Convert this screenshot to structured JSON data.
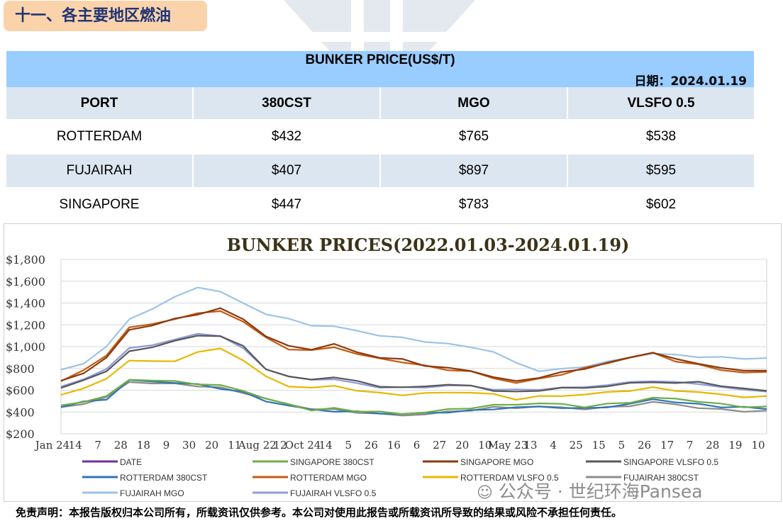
{
  "section_title": "十一、各主要地区燃油",
  "watermark": "pansea",
  "table": {
    "title": "BUNKER PRICE(US$/T)",
    "date_label": "日期：",
    "date_value": "2024.01.19",
    "columns": [
      "PORT",
      "380CST",
      "MGO",
      "VLSFO 0.5"
    ],
    "rows": [
      [
        "ROTTERDAM",
        "$432",
        "$765",
        "$538"
      ],
      [
        "FUJAIRAH",
        "$407",
        "$897",
        "$595"
      ],
      [
        "SINGAPORE",
        "$447",
        "$783",
        "$602"
      ]
    ]
  },
  "chart_data": {
    "type": "line",
    "title": "BUNKER PRICES(2022.01.03-2024.01.19)",
    "xlabel": "",
    "ylabel": "",
    "ylim": [
      200,
      1800
    ],
    "y_ticks": [
      "$200",
      "$400",
      "$600",
      "$800",
      "$1,000",
      "$1,200",
      "$1,400",
      "$1,600",
      "$1,800"
    ],
    "x_ticks": [
      "Jan 24",
      "14",
      "7",
      "28",
      "18",
      "9",
      "30",
      "20",
      "11",
      "Aug 22",
      "12",
      "Oct 24",
      "14",
      "5",
      "26",
      "16",
      "6",
      "27",
      "20",
      "10",
      "May 23",
      "13",
      "4",
      "25",
      "15",
      "5",
      "26",
      "17",
      "7",
      "28",
      "19",
      "10"
    ],
    "grid": true,
    "legend_position": "bottom",
    "series": [
      {
        "name": "DATE",
        "color": "#7030a0",
        "values": []
      },
      {
        "name": "SINGAPORE 380CST",
        "color": "#70ad47",
        "values": [
          455,
          500,
          540,
          700,
          690,
          680,
          660,
          640,
          600,
          520,
          470,
          420,
          430,
          410,
          400,
          380,
          400,
          420,
          440,
          460,
          470,
          480,
          470,
          450,
          470,
          490,
          530,
          520,
          500,
          470,
          450,
          447
        ]
      },
      {
        "name": "SINGAPORE MGO",
        "color": "#8b3a0e",
        "values": [
          680,
          760,
          900,
          1150,
          1200,
          1250,
          1300,
          1350,
          1250,
          1100,
          1000,
          980,
          1020,
          950,
          900,
          880,
          830,
          800,
          780,
          720,
          680,
          720,
          760,
          800,
          850,
          900,
          950,
          880,
          850,
          800,
          780,
          783
        ]
      },
      {
        "name": "SINGAPORE VLSFO 0.5",
        "color": "#595959",
        "values": [
          620,
          690,
          780,
          950,
          1000,
          1050,
          1100,
          1100,
          1000,
          800,
          720,
          700,
          720,
          680,
          640,
          620,
          640,
          650,
          640,
          600,
          580,
          600,
          620,
          620,
          640,
          660,
          680,
          660,
          680,
          640,
          610,
          602
        ]
      },
      {
        "name": "ROTTERDAM 380CST",
        "color": "#2e75b6",
        "values": [
          450,
          490,
          520,
          690,
          680,
          670,
          650,
          620,
          580,
          500,
          460,
          420,
          410,
          400,
          390,
          380,
          390,
          400,
          410,
          430,
          440,
          450,
          440,
          430,
          450,
          470,
          520,
          490,
          470,
          450,
          440,
          432
        ]
      },
      {
        "name": "ROTTERDAM MGO",
        "color": "#c55a11",
        "values": [
          690,
          780,
          920,
          1180,
          1200,
          1260,
          1300,
          1330,
          1230,
          1080,
          980,
          960,
          1000,
          930,
          890,
          860,
          820,
          790,
          770,
          710,
          670,
          700,
          750,
          800,
          850,
          900,
          940,
          870,
          830,
          790,
          760,
          765
        ]
      },
      {
        "name": "ROTTERDAM VLSFO 0.5",
        "color": "#e6b800",
        "values": [
          560,
          620,
          700,
          880,
          860,
          870,
          950,
          980,
          880,
          720,
          640,
          620,
          640,
          600,
          570,
          560,
          570,
          580,
          580,
          560,
          520,
          540,
          550,
          560,
          580,
          600,
          620,
          600,
          580,
          560,
          540,
          538
        ]
      },
      {
        "name": "FUJAIRAH  380CST",
        "color": "#8c8c8c",
        "values": [
          440,
          480,
          530,
          680,
          660,
          660,
          640,
          620,
          580,
          520,
          470,
          430,
          420,
          400,
          380,
          370,
          380,
          400,
          420,
          440,
          440,
          450,
          440,
          430,
          440,
          460,
          490,
          470,
          440,
          420,
          410,
          407
        ]
      },
      {
        "name": "FUJAIRAH MGO",
        "color": "#9dc3e6",
        "values": [
          780,
          850,
          1000,
          1250,
          1350,
          1450,
          1550,
          1500,
          1400,
          1300,
          1250,
          1200,
          1180,
          1150,
          1100,
          1080,
          1050,
          1020,
          1000,
          950,
          850,
          780,
          790,
          820,
          860,
          900,
          940,
          920,
          910,
          900,
          890,
          897
        ]
      },
      {
        "name": "FUJAIRAH VLSFO 0.5",
        "color": "#8e9bdb",
        "values": [
          630,
          700,
          800,
          980,
          1020,
          1060,
          1120,
          1100,
          980,
          800,
          720,
          700,
          700,
          660,
          630,
          620,
          630,
          640,
          640,
          610,
          600,
          610,
          620,
          630,
          650,
          670,
          690,
          670,
          660,
          630,
          600,
          595
        ]
      }
    ]
  },
  "disclaimer": "免责声明：本报告版权归本公司所有，所载资讯仅供参考。本公司对使用此报告或所载资讯所导致的结果或风险不承担任何责任。",
  "wechat_label": "公众号 · 世纪环海Pansea"
}
